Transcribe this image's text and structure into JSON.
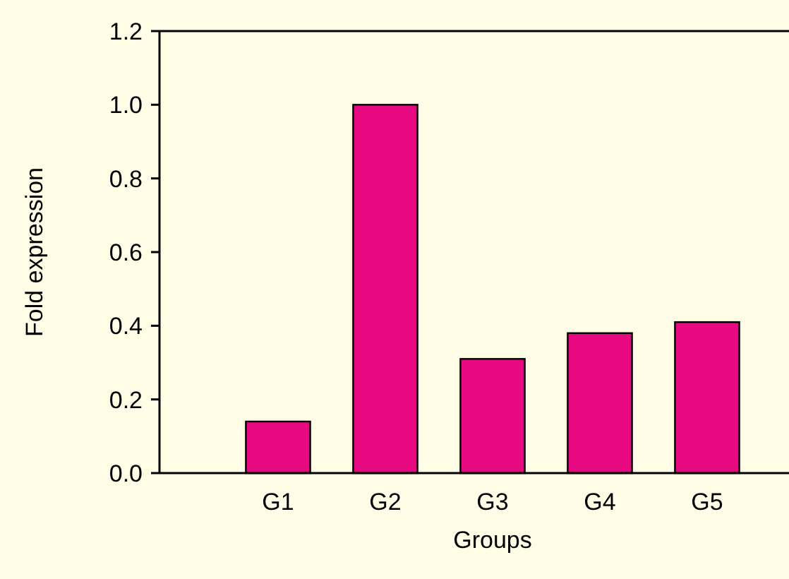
{
  "chart_data": {
    "type": "bar",
    "xlabel": "Groups",
    "ylabel": "Fold expression",
    "categories": [
      "G1",
      "G2",
      "G3",
      "G4",
      "G5"
    ],
    "values": [
      0.14,
      1.0,
      0.31,
      0.38,
      0.41
    ],
    "color": "#e6097f",
    "ylim": [
      0,
      1.2
    ],
    "yticks": [
      {
        "value": 0,
        "label": "0.0"
      },
      0.2,
      0.4,
      0.6,
      0.8,
      {
        "value": 1,
        "label": "1.0"
      },
      1.2
    ],
    "grid": false
  }
}
